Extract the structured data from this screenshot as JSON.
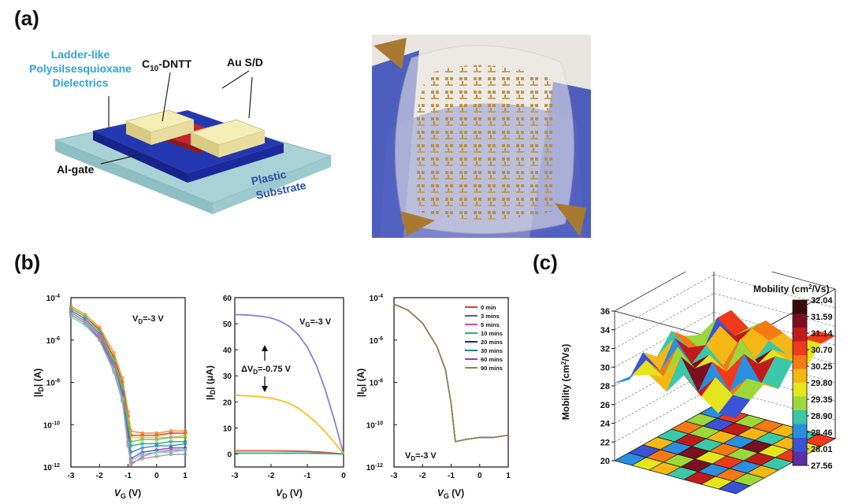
{
  "panels": {
    "a": "(a)",
    "b": "(b)",
    "c": "(c)"
  },
  "device": {
    "dielectric_label": [
      "Ladder-like",
      "Polysilsesquioxane",
      "Dielectrics"
    ],
    "semiconductor_label": "C",
    "semiconductor_sub": "10",
    "semiconductor_suffix": "-DNTT",
    "electrode_label": "Au S/D",
    "gate_label": "Al-gate",
    "substrate_label": [
      "Plastic",
      "Substrate"
    ],
    "colors": {
      "substrate": "#a9d2d6",
      "dielectric": "#1f2f9e",
      "semiconductor": "#c3262b",
      "electrode": "#efe6a3",
      "gate": "#b8b8b8",
      "label_blue": "#2aa6db"
    }
  },
  "chart_data": [
    {
      "type": "line",
      "panel": "b-left",
      "annotation": "VD=-3 V",
      "annotation_parts": [
        "V",
        "D",
        "=-3 V"
      ],
      "xlabel": "VG (V)",
      "xlabel_parts": [
        "V",
        "G",
        " (V)"
      ],
      "ylabel": "|ID| (A)",
      "ylabel_parts": [
        "|I",
        "D",
        "| (A)"
      ],
      "xlim": [
        -3,
        1
      ],
      "ylim_log10": [
        -12,
        -4
      ],
      "y_scale": "log",
      "x_ticks": [
        "-3",
        "-2",
        "-1",
        "0",
        "1"
      ],
      "y_ticks": [
        {
          "value": -4,
          "base": "10",
          "exp": "-4"
        },
        {
          "value": -6,
          "base": "10",
          "exp": "-6"
        },
        {
          "value": -8,
          "base": "10",
          "exp": "-8"
        },
        {
          "value": -10,
          "base": "10",
          "exp": "-10"
        },
        {
          "value": -12,
          "base": "10",
          "exp": "-12"
        }
      ],
      "series": [
        {
          "color": "#e03a2e",
          "x": [
            -3,
            -2.5,
            -2,
            -1.5,
            -1.2,
            -1.0,
            -0.9,
            -0.5,
            0,
            0.5,
            1
          ],
          "log10_y": [
            -4.5,
            -4.9,
            -5.5,
            -6.8,
            -8.0,
            -9.6,
            -10.5,
            -10.5,
            -10.5,
            -10.4,
            -10.4
          ]
        },
        {
          "color": "#f28c28",
          "x": [
            -3,
            -2.5,
            -2,
            -1.5,
            -1.2,
            -1.0,
            -0.9,
            -0.5,
            0,
            0.5,
            1
          ],
          "log10_y": [
            -4.4,
            -4.8,
            -5.4,
            -6.6,
            -7.8,
            -9.4,
            -10.3,
            -10.4,
            -10.4,
            -10.3,
            -10.3
          ]
        },
        {
          "color": "#f5c518",
          "x": [
            -3,
            -2.5,
            -2,
            -1.5,
            -1.2,
            -1.0,
            -0.9,
            -0.5,
            0,
            0.5,
            1
          ],
          "log10_y": [
            -4.6,
            -5.0,
            -5.7,
            -7.0,
            -8.3,
            -9.8,
            -10.6,
            -10.6,
            -10.6,
            -10.6,
            -10.5
          ]
        },
        {
          "color": "#6cbf3b",
          "x": [
            -3,
            -2.5,
            -2,
            -1.5,
            -1.2,
            -1.0,
            -0.9,
            -0.5,
            0,
            0.5,
            1
          ],
          "log10_y": [
            -4.5,
            -4.9,
            -5.6,
            -6.9,
            -8.2,
            -9.9,
            -10.8,
            -10.7,
            -10.7,
            -10.6,
            -10.6
          ]
        },
        {
          "color": "#2aa57a",
          "x": [
            -3,
            -2.5,
            -2,
            -1.5,
            -1.2,
            -1.0,
            -0.9,
            -0.5,
            0,
            0.5,
            1
          ],
          "log10_y": [
            -4.7,
            -5.1,
            -5.8,
            -7.2,
            -8.5,
            -10.2,
            -11.0,
            -10.9,
            -10.9,
            -10.8,
            -10.8
          ]
        },
        {
          "color": "#2b8fd6",
          "x": [
            -3,
            -2.5,
            -2,
            -1.5,
            -1.2,
            -1.0,
            -0.9,
            -0.5,
            0,
            0.5,
            1
          ],
          "log10_y": [
            -4.6,
            -5.0,
            -5.7,
            -7.1,
            -8.4,
            -10.4,
            -11.3,
            -11.1,
            -11.0,
            -11.0,
            -10.9
          ]
        },
        {
          "color": "#6b4fb0",
          "x": [
            -3,
            -2.5,
            -2,
            -1.5,
            -1.2,
            -1.0,
            -0.9,
            -0.5,
            0,
            0.5,
            1
          ],
          "log10_y": [
            -4.8,
            -5.2,
            -5.9,
            -7.3,
            -8.6,
            -10.6,
            -11.6,
            -11.3,
            -11.2,
            -11.1,
            -11.1
          ]
        },
        {
          "color": "#d16bb8",
          "x": [
            -3,
            -2.5,
            -2,
            -1.5,
            -1.2,
            -1.0,
            -0.9,
            -0.5,
            0,
            0.5,
            1
          ],
          "log10_y": [
            -4.7,
            -5.1,
            -5.8,
            -7.2,
            -8.7,
            -10.8,
            -11.9,
            -11.5,
            -11.3,
            -11.2,
            -11.2
          ]
        },
        {
          "color": "#6bd0c9",
          "x": [
            -3,
            -2.5,
            -2,
            -1.5,
            -1.2,
            -1.0,
            -0.9,
            -0.5,
            0,
            0.5,
            1
          ],
          "log10_y": [
            -4.9,
            -5.3,
            -6.0,
            -7.4,
            -8.8,
            -10.9,
            -11.7,
            -11.4,
            -11.3,
            -11.3,
            -11.2
          ]
        },
        {
          "color": "#9e9e9e",
          "x": [
            -3,
            -2.5,
            -2,
            -1.5,
            -1.2,
            -1.0,
            -0.9,
            -0.5,
            0,
            0.5,
            1
          ],
          "log10_y": [
            -4.8,
            -5.2,
            -6.0,
            -7.5,
            -8.9,
            -11.0,
            -11.8,
            -11.6,
            -11.5,
            -11.4,
            -11.4
          ]
        }
      ]
    },
    {
      "type": "line",
      "panel": "b-middle",
      "annotation": "VG=-3 V",
      "annotation_parts": [
        "V",
        "G",
        "=-3 V"
      ],
      "arrow_annotation": "ΔVD=-0.75 V",
      "arrow_parts": [
        "ΔV",
        "D",
        "=-0.75 V"
      ],
      "xlabel": "VD (V)",
      "xlabel_parts": [
        "V",
        "D",
        " (V)"
      ],
      "ylabel": "|ID| (μA)",
      "ylabel_parts": [
        "|I",
        "D",
        "| (μA)"
      ],
      "xlim": [
        -3,
        0
      ],
      "ylim": [
        -5,
        60
      ],
      "x_ticks": [
        "-3",
        "-2",
        "-1",
        "0"
      ],
      "y_ticks": [
        "0",
        "10",
        "20",
        "30",
        "40",
        "50",
        "60"
      ],
      "series": [
        {
          "color": "#8a7fd6",
          "x": [
            -3,
            -2.75,
            -2.5,
            -2.25,
            -2,
            -1.75,
            -1.5,
            -1.25,
            -1,
            -0.75,
            -0.5,
            -0.25,
            0
          ],
          "y": [
            53.5,
            53.4,
            53.2,
            52.8,
            52.2,
            51.0,
            49.0,
            45.8,
            41.0,
            34.0,
            24.5,
            12.8,
            0
          ]
        },
        {
          "color": "#f0c419",
          "x": [
            -3,
            -2.75,
            -2.5,
            -2.25,
            -2,
            -1.75,
            -1.5,
            -1.25,
            -1,
            -0.75,
            -0.5,
            -0.25,
            0
          ],
          "y": [
            22.5,
            22.4,
            22.2,
            21.9,
            21.4,
            20.6,
            19.4,
            17.6,
            15.0,
            12.0,
            8.4,
            4.4,
            0
          ]
        },
        {
          "color": "#e2512a",
          "x": [
            -3,
            -2.5,
            -2,
            -1.5,
            -1,
            -0.5,
            0
          ],
          "y": [
            1.2,
            1.2,
            1.2,
            1.1,
            1.0,
            0.6,
            0
          ]
        },
        {
          "color": "#2aa69a",
          "x": [
            -3,
            -2.5,
            -2,
            -1.5,
            -1,
            -0.5,
            0
          ],
          "y": [
            0.3,
            0.3,
            0.3,
            0.3,
            0.3,
            0.2,
            0
          ]
        }
      ]
    },
    {
      "type": "line",
      "panel": "b-right",
      "annotation": "VD=-3 V",
      "annotation_parts": [
        "V",
        "D",
        "=-3 V"
      ],
      "xlabel": "VG (V)",
      "xlabel_parts": [
        "V",
        "G",
        " (V)"
      ],
      "ylabel": "|ID| (A)",
      "ylabel_parts": [
        "|I",
        "D",
        "| (A)"
      ],
      "xlim": [
        -3,
        1
      ],
      "ylim_log10": [
        -12,
        -4
      ],
      "y_scale": "log",
      "x_ticks": [
        "-3",
        "-2",
        "-1",
        "0",
        "1"
      ],
      "y_ticks": [
        {
          "value": -4,
          "base": "10",
          "exp": "-4"
        },
        {
          "value": -6,
          "base": "10",
          "exp": "-6"
        },
        {
          "value": -8,
          "base": "10",
          "exp": "-8"
        },
        {
          "value": -10,
          "base": "10",
          "exp": "-10"
        },
        {
          "value": -12,
          "base": "10",
          "exp": "-12"
        }
      ],
      "legend": "top-right",
      "series": [
        {
          "name": "0 min",
          "color": "#e03a2e",
          "x": [
            -3,
            -2.5,
            -2,
            -1.5,
            -1.2,
            -1.0,
            -0.85,
            -0.5,
            0,
            0.5,
            1
          ],
          "log10_y": [
            -4.3,
            -4.6,
            -5.2,
            -6.3,
            -7.4,
            -9.0,
            -10.8,
            -10.7,
            -10.6,
            -10.6,
            -10.5
          ]
        },
        {
          "name": "3 mins",
          "color": "#3a5fd0",
          "x": [
            -3,
            -2.5,
            -2,
            -1.5,
            -1.2,
            -1.0,
            -0.85,
            -0.5,
            0,
            0.5,
            1
          ],
          "log10_y": [
            -4.3,
            -4.6,
            -5.2,
            -6.3,
            -7.4,
            -9.0,
            -10.8,
            -10.7,
            -10.6,
            -10.6,
            -10.5
          ]
        },
        {
          "name": "5 mins",
          "color": "#d04aa0",
          "x": [
            -3,
            -2.5,
            -2,
            -1.5,
            -1.2,
            -1.0,
            -0.85,
            -0.5,
            0,
            0.5,
            1
          ],
          "log10_y": [
            -4.3,
            -4.6,
            -5.2,
            -6.3,
            -7.4,
            -9.0,
            -10.8,
            -10.7,
            -10.6,
            -10.6,
            -10.5
          ]
        },
        {
          "name": "10 mins",
          "color": "#2bb36b",
          "x": [
            -3,
            -2.5,
            -2,
            -1.5,
            -1.2,
            -1.0,
            -0.85,
            -0.5,
            0,
            0.5,
            1
          ],
          "log10_y": [
            -4.3,
            -4.6,
            -5.2,
            -6.3,
            -7.4,
            -9.0,
            -10.8,
            -10.7,
            -10.6,
            -10.6,
            -10.5
          ]
        },
        {
          "name": "20 mins",
          "color": "#1b2b8c",
          "x": [
            -3,
            -2.5,
            -2,
            -1.5,
            -1.2,
            -1.0,
            -0.85,
            -0.5,
            0,
            0.5,
            1
          ],
          "log10_y": [
            -4.3,
            -4.6,
            -5.2,
            -6.3,
            -7.4,
            -9.0,
            -10.8,
            -10.7,
            -10.6,
            -10.6,
            -10.5
          ]
        },
        {
          "name": "30 mins",
          "color": "#1f7f8f",
          "x": [
            -3,
            -2.5,
            -2,
            -1.5,
            -1.2,
            -1.0,
            -0.85,
            -0.5,
            0,
            0.5,
            1
          ],
          "log10_y": [
            -4.3,
            -4.6,
            -5.2,
            -6.3,
            -7.4,
            -9.0,
            -10.8,
            -10.7,
            -10.6,
            -10.6,
            -10.5
          ]
        },
        {
          "name": "60 mins",
          "color": "#8a3fc0",
          "x": [
            -3,
            -2.5,
            -2,
            -1.5,
            -1.2,
            -1.0,
            -0.85,
            -0.5,
            0,
            0.5,
            1
          ],
          "log10_y": [
            -4.3,
            -4.6,
            -5.2,
            -6.3,
            -7.4,
            -9.0,
            -10.8,
            -10.7,
            -10.6,
            -10.6,
            -10.5
          ]
        },
        {
          "name": "90 mins",
          "color": "#8c8c3a",
          "x": [
            -3,
            -2.5,
            -2,
            -1.5,
            -1.2,
            -1.0,
            -0.85,
            -0.5,
            0,
            0.5,
            1
          ],
          "log10_y": [
            -4.3,
            -4.6,
            -5.2,
            -6.3,
            -7.4,
            -9.0,
            -10.8,
            -10.7,
            -10.6,
            -10.6,
            -10.5
          ]
        }
      ]
    },
    {
      "type": "heatmap",
      "panel": "c",
      "zlabel": "Mobility (cm2/Vs)",
      "zlabel_parts": [
        "Mobility (cm",
        "2",
        "/Vs)"
      ],
      "z_ticks": [
        "20",
        "22",
        "24",
        "26",
        "28",
        "30",
        "32",
        "34",
        "36"
      ],
      "zlim": [
        20,
        36
      ],
      "colorbar_title": "Mobility (cm2/Vs)",
      "colorbar_title_parts": [
        "Mobility (cm",
        "2",
        "/Vs)"
      ],
      "colorbar_ticks": [
        "32.04",
        "31.59",
        "31.14",
        "30.70",
        "30.25",
        "29.80",
        "29.35",
        "28.90",
        "28.46",
        "28.01",
        "27.56"
      ],
      "colorbar_colors": [
        "#3a0a10",
        "#7a0f1f",
        "#c01b1b",
        "#ee3a1b",
        "#f57a14",
        "#f5b714",
        "#e5e51e",
        "#9cd83a",
        "#3ac8a8",
        "#2a8fe0",
        "#3a52d6",
        "#5a2ea6"
      ],
      "grid": [
        [
          28.3,
          29.6,
          30.2,
          28.9,
          31.2,
          29.4,
          28.1
        ],
        [
          27.8,
          30.4,
          29.1,
          31.8,
          28.5,
          30.6,
          29.2
        ],
        [
          29.9,
          28.4,
          31.5,
          29.7,
          30.9,
          28.2,
          30.1
        ],
        [
          28.6,
          31.1,
          28.8,
          30.3,
          29.0,
          31.4,
          28.7
        ],
        [
          30.5,
          29.2,
          30.0,
          28.3,
          31.7,
          29.5,
          30.8
        ],
        [
          29.1,
          28.0,
          31.2,
          29.9,
          28.6,
          30.2,
          29.4
        ],
        [
          28.4,
          30.7,
          29.3,
          30.6,
          29.8,
          28.9,
          31.0
        ]
      ]
    }
  ]
}
